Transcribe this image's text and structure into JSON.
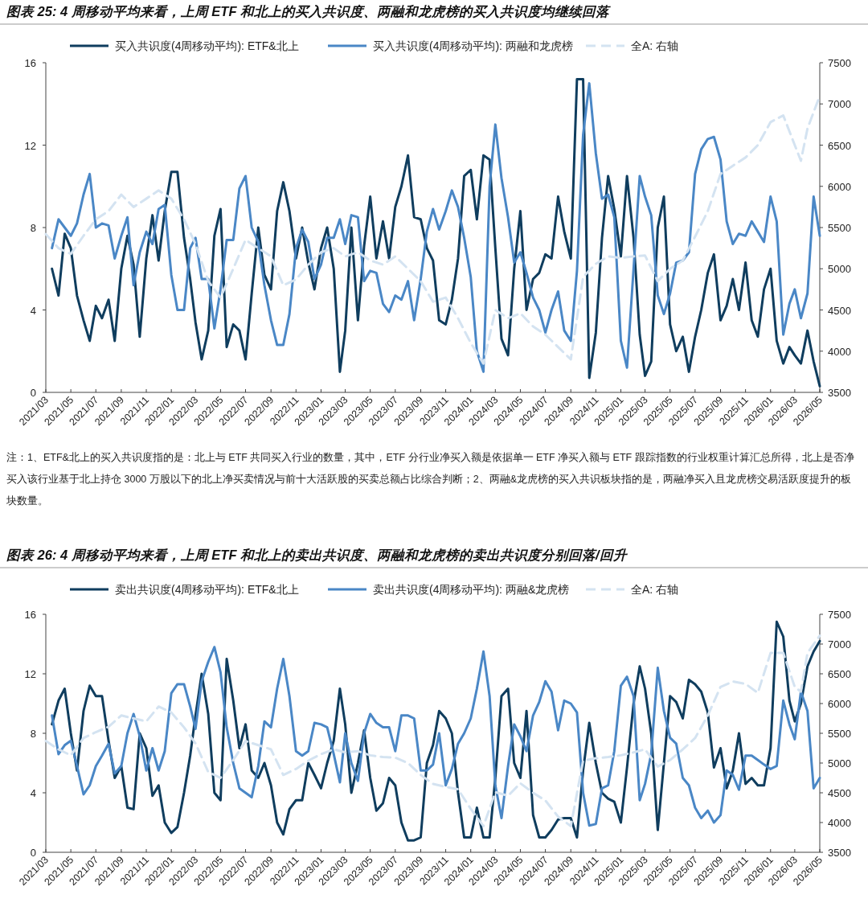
{
  "chart_data": [
    {
      "type": "line",
      "title": "图表 25: 4 周移动平均来看，上周 ETF 和北上的买入共识度、两融和龙虎榜的买入共识度均继续回落",
      "legend": "top",
      "xlim": [
        "2021-03-01",
        "2026-05-01"
      ],
      "xticks": [
        {
          "value": "2021-03-01",
          "label": "2021/03"
        },
        {
          "value": "2021-05-01",
          "label": "2021/05"
        },
        {
          "value": "2021-07-01",
          "label": "2021/07"
        },
        {
          "value": "2021-09-01",
          "label": "2021/09"
        },
        {
          "value": "2021-11-01",
          "label": "2021/11"
        },
        {
          "value": "2022-01-01",
          "label": "2022/01"
        },
        {
          "value": "2022-03-01",
          "label": "2022/03"
        },
        {
          "value": "2022-05-01",
          "label": "2022/05"
        },
        {
          "value": "2022-07-01",
          "label": "2022/07"
        },
        {
          "value": "2022-09-01",
          "label": "2022/09"
        },
        {
          "value": "2022-11-01",
          "label": "2022/11"
        },
        {
          "value": "2023-01-01",
          "label": "2023/01"
        },
        {
          "value": "2023-03-01",
          "label": "2023/03"
        },
        {
          "value": "2023-05-01",
          "label": "2023/05"
        },
        {
          "value": "2023-07-01",
          "label": "2023/07"
        },
        {
          "value": "2023-09-01",
          "label": "2023/09"
        },
        {
          "value": "2023-11-01",
          "label": "2023/11"
        },
        {
          "value": "2024-01-01",
          "label": "2024/01"
        },
        {
          "value": "2024-03-01",
          "label": "2024/03"
        },
        {
          "value": "2024-05-01",
          "label": "2024/05"
        },
        {
          "value": "2024-07-01",
          "label": "2024/07"
        },
        {
          "value": "2024-09-01",
          "label": "2024/09"
        },
        {
          "value": "2024-11-01",
          "label": "2024/11"
        },
        {
          "value": "2025-01-01",
          "label": "2025/01"
        },
        {
          "value": "2025-03-01",
          "label": "2025/03"
        },
        {
          "value": "2025-05-01",
          "label": "2025/05"
        },
        {
          "value": "2025-07-01",
          "label": "2025/07"
        },
        {
          "value": "2025-09-01",
          "label": "2025/09"
        },
        {
          "value": "2025-11-01",
          "label": "2025/11"
        },
        {
          "value": "2026-01-01",
          "label": "2026/01"
        },
        {
          "value": "2026-03-01",
          "label": "2026/03"
        },
        {
          "value": "2026-05-01",
          "label": "2026/05"
        }
      ],
      "ylim": [
        0,
        16
      ],
      "yticks": [
        0,
        4,
        8,
        12,
        16
      ],
      "y2lim": [
        3500,
        7500
      ],
      "y2ticks": [
        3500,
        4000,
        4500,
        5000,
        5500,
        6000,
        6500,
        7000,
        7500
      ],
      "x": [
        "2021-03-16",
        "2021-04-01",
        "2021-04-16",
        "2021-05-01",
        "2021-05-16",
        "2021-06-01",
        "2021-06-16",
        "2021-07-01",
        "2021-07-16",
        "2021-08-01",
        "2021-08-16",
        "2021-09-01",
        "2021-09-16",
        "2021-10-01",
        "2021-10-16",
        "2021-11-01",
        "2021-11-16",
        "2021-12-01",
        "2021-12-16",
        "2022-01-01",
        "2022-01-16",
        "2022-02-01",
        "2022-02-16",
        "2022-03-01",
        "2022-03-16",
        "2022-04-01",
        "2022-04-16",
        "2022-05-01",
        "2022-05-16",
        "2022-06-01",
        "2022-06-16",
        "2022-07-01",
        "2022-07-16",
        "2022-08-01",
        "2022-08-16",
        "2022-09-01",
        "2022-09-16",
        "2022-10-01",
        "2022-10-16",
        "2022-11-01",
        "2022-11-16",
        "2022-12-01",
        "2022-12-16",
        "2023-01-01",
        "2023-01-16",
        "2023-02-01",
        "2023-02-16",
        "2023-03-01",
        "2023-03-16",
        "2023-04-01",
        "2023-04-16",
        "2023-05-01",
        "2023-05-16",
        "2023-06-01",
        "2023-06-16",
        "2023-07-01",
        "2023-07-16",
        "2023-08-01",
        "2023-08-16",
        "2023-09-01",
        "2023-09-16",
        "2023-10-01",
        "2023-10-16",
        "2023-11-01",
        "2023-11-16",
        "2023-12-01",
        "2023-12-16",
        "2024-01-01",
        "2024-01-16",
        "2024-02-01",
        "2024-02-16",
        "2024-03-01",
        "2024-03-16",
        "2024-04-01",
        "2024-04-16",
        "2024-05-01",
        "2024-05-16",
        "2024-06-01",
        "2024-06-16",
        "2024-07-01",
        "2024-07-16",
        "2024-08-01",
        "2024-08-16",
        "2024-09-01",
        "2024-09-16",
        "2024-10-01",
        "2024-10-16",
        "2024-11-01",
        "2024-11-16",
        "2024-12-01",
        "2024-12-16",
        "2025-01-01",
        "2025-01-16",
        "2025-02-01",
        "2025-02-16",
        "2025-03-01",
        "2025-03-16",
        "2025-04-01",
        "2025-04-16",
        "2025-05-01",
        "2025-05-16",
        "2025-06-01",
        "2025-06-16",
        "2025-07-01",
        "2025-07-16",
        "2025-08-01",
        "2025-08-16",
        "2025-09-01",
        "2025-09-16",
        "2025-10-01",
        "2025-10-16",
        "2025-11-01",
        "2025-11-16",
        "2025-12-01",
        "2025-12-16",
        "2026-01-01",
        "2026-01-16",
        "2026-02-01",
        "2026-02-16",
        "2026-03-01",
        "2026-03-16",
        "2026-04-01",
        "2026-04-16",
        "2026-05-01"
      ],
      "series": [
        {
          "name": "买入共识度(4周移动平均): ETF&北上",
          "color": "#0f3d5e",
          "values": [
            6.0,
            4.7,
            7.7,
            7.0,
            4.7,
            3.5,
            2.5,
            4.2,
            3.6,
            4.5,
            2.5,
            6.0,
            7.6,
            6.2,
            2.7,
            6.5,
            8.6,
            6.4,
            8.8,
            10.7,
            10.7,
            7.5,
            5.5,
            3.4,
            1.6,
            3.0,
            7.6,
            8.9,
            2.2,
            3.3,
            3.0,
            1.6,
            4.8,
            8.0,
            5.7,
            5.0,
            8.8,
            10.2,
            8.8,
            6.5,
            8.0,
            6.3,
            5.0,
            7.0,
            8.0,
            6.0,
            1.0,
            3.0,
            8.0,
            3.5,
            7.1,
            9.5,
            6.5,
            8.3,
            6.5,
            9.0,
            10.0,
            11.5,
            8.5,
            8.4,
            7.0,
            6.4,
            3.5,
            3.3,
            4.5,
            6.5,
            10.5,
            10.8,
            8.4,
            11.5,
            11.3,
            7.0,
            2.6,
            1.8,
            6.0,
            8.8,
            4.0,
            5.5,
            5.8,
            6.7,
            6.5,
            9.5,
            7.8,
            6.5,
            15.2,
            15.2,
            0.7,
            2.9,
            7.5,
            10.5,
            8.9,
            6.6,
            10.5,
            7.5,
            2.8,
            0.8,
            1.5,
            8.0,
            9.5,
            3.3,
            2.0,
            2.7,
            1.0,
            2.7,
            4.0,
            5.8,
            6.7,
            3.5,
            4.2,
            5.5,
            4.0,
            6.3,
            3.5,
            2.7,
            5.0,
            6.0,
            2.5,
            1.4,
            2.2,
            1.8,
            1.4,
            3.0,
            1.5,
            0.3
          ]
        },
        {
          "name": "买入共识度(4周移动平均): 两融和龙虎榜",
          "color": "#4a87c6",
          "values": [
            7.0,
            8.4,
            8.0,
            7.6,
            8.2,
            9.6,
            10.6,
            8.0,
            8.2,
            8.1,
            6.5,
            7.6,
            8.5,
            5.2,
            6.8,
            7.8,
            7.2,
            8.9,
            9.1,
            5.7,
            4.0,
            4.0,
            7.0,
            7.5,
            5.5,
            5.5,
            3.1,
            5.0,
            7.4,
            7.4,
            9.9,
            10.5,
            8.0,
            7.3,
            5.2,
            3.5,
            2.3,
            2.3,
            3.8,
            7.0,
            7.9,
            7.3,
            5.5,
            6.2,
            7.5,
            7.5,
            8.4,
            7.2,
            8.6,
            8.5,
            5.4,
            5.9,
            5.8,
            4.3,
            3.9,
            4.7,
            4.5,
            5.4,
            3.5,
            5.5,
            7.8,
            8.9,
            7.9,
            8.8,
            9.8,
            9.0,
            7.5,
            5.6,
            2.0,
            1.0,
            10.0,
            13.0,
            10.4,
            8.5,
            6.3,
            6.8,
            5.8,
            4.6,
            4.0,
            2.9,
            4.0,
            4.9,
            3.0,
            2.5,
            5.9,
            12.5,
            15.0,
            11.6,
            9.4,
            9.6,
            8.5,
            2.5,
            1.2,
            6.0,
            10.5,
            9.5,
            8.6,
            4.7,
            3.8,
            4.8,
            6.3,
            6.4,
            6.8,
            10.6,
            11.8,
            12.3,
            12.4,
            11.3,
            8.3,
            7.2,
            7.7,
            7.6,
            8.3,
            7.8,
            7.3,
            9.5,
            8.3,
            2.8,
            4.3,
            5.0,
            3.6,
            4.8,
            9.5,
            7.6
          ]
        },
        {
          "name": "全A: 右轴",
          "color": "#d4e3f1",
          "axis": "y2",
          "line_style": "dashed",
          "x": [
            "2021-03-01",
            "2021-04-01",
            "2021-05-01",
            "2021-06-01",
            "2021-07-01",
            "2021-08-01",
            "2021-09-01",
            "2021-10-01",
            "2021-11-01",
            "2021-12-01",
            "2022-01-01",
            "2022-02-01",
            "2022-03-01",
            "2022-04-01",
            "2022-05-01",
            "2022-06-01",
            "2022-07-01",
            "2022-08-01",
            "2022-09-01",
            "2022-10-01",
            "2022-11-01",
            "2022-12-01",
            "2023-01-01",
            "2023-02-01",
            "2023-03-01",
            "2023-04-01",
            "2023-05-01",
            "2023-06-01",
            "2023-07-01",
            "2023-08-01",
            "2023-09-01",
            "2023-10-01",
            "2023-11-01",
            "2023-12-01",
            "2024-01-01",
            "2024-02-01",
            "2024-03-01",
            "2024-04-01",
            "2024-05-01",
            "2024-06-01",
            "2024-07-01",
            "2024-08-01",
            "2024-09-01",
            "2024-10-01",
            "2024-11-01",
            "2024-12-01",
            "2025-01-01",
            "2025-02-01",
            "2025-03-01",
            "2025-04-01",
            "2025-05-01",
            "2025-06-01",
            "2025-07-01",
            "2025-08-01",
            "2025-09-01",
            "2025-10-01",
            "2025-11-01",
            "2025-12-01",
            "2026-01-01",
            "2026-02-01",
            "2026-03-01",
            "2026-03-16",
            "2026-04-01",
            "2026-05-01"
          ],
          "values": [
            5420,
            5250,
            5180,
            5400,
            5600,
            5700,
            5900,
            5750,
            5850,
            5950,
            5850,
            5600,
            5300,
            4850,
            4650,
            5000,
            5350,
            5250,
            5150,
            4800,
            4870,
            5050,
            5200,
            5250,
            5150,
            5200,
            5100,
            5050,
            5150,
            5000,
            4850,
            4600,
            4650,
            4400,
            4100,
            3850,
            4500,
            4400,
            4460,
            4300,
            4200,
            4050,
            3900,
            4900,
            5060,
            5150,
            5130,
            5150,
            5160,
            4850,
            5000,
            5100,
            5390,
            5700,
            6150,
            6250,
            6350,
            6500,
            6780,
            6860,
            6500,
            6310,
            6700,
            7100
          ]
        }
      ],
      "annotations": [
        "注：1、ETF&北上的买入共识度指的是：北上与 ETF 共同买入行业的数量，其中，ETF 分行业净买入额是依据单一 ETF 净买入额与 ETF 跟踪指数的行业权重计算汇总所得，北上是否净买入该行业基于北上持仓 3000 万股以下的北上净买卖情况与前十大活跃股的买卖总额占比综合判断；2、两融&龙虎榜的买入共识板块指的是，两融净买入且龙虎榜交易活跃度提升的板块数量。"
      ]
    },
    {
      "type": "line",
      "title": "图表 26: 4 周移动平均来看，上周 ETF 和北上的卖出共识度、两融和龙虎榜的卖出共识度分别回落/回升",
      "legend": "top",
      "xlim": [
        "2021-03-01",
        "2026-05-01"
      ],
      "xticks": [
        {
          "value": "2021-03-01",
          "label": "2021/03"
        },
        {
          "value": "2021-05-01",
          "label": "2021/05"
        },
        {
          "value": "2021-07-01",
          "label": "2021/07"
        },
        {
          "value": "2021-09-01",
          "label": "2021/09"
        },
        {
          "value": "2021-11-01",
          "label": "2021/11"
        },
        {
          "value": "2022-01-01",
          "label": "2022/01"
        },
        {
          "value": "2022-03-01",
          "label": "2022/03"
        },
        {
          "value": "2022-05-01",
          "label": "2022/05"
        },
        {
          "value": "2022-07-01",
          "label": "2022/07"
        },
        {
          "value": "2022-09-01",
          "label": "2022/09"
        },
        {
          "value": "2022-11-01",
          "label": "2022/11"
        },
        {
          "value": "2023-01-01",
          "label": "2023/01"
        },
        {
          "value": "2023-03-01",
          "label": "2023/03"
        },
        {
          "value": "2023-05-01",
          "label": "2023/05"
        },
        {
          "value": "2023-07-01",
          "label": "2023/07"
        },
        {
          "value": "2023-09-01",
          "label": "2023/09"
        },
        {
          "value": "2023-11-01",
          "label": "2023/11"
        },
        {
          "value": "2024-01-01",
          "label": "2024/01"
        },
        {
          "value": "2024-03-01",
          "label": "2024/03"
        },
        {
          "value": "2024-05-01",
          "label": "2024/05"
        },
        {
          "value": "2024-07-01",
          "label": "2024/07"
        },
        {
          "value": "2024-09-01",
          "label": "2024/09"
        },
        {
          "value": "2024-11-01",
          "label": "2024/11"
        },
        {
          "value": "2025-01-01",
          "label": "2025/01"
        },
        {
          "value": "2025-03-01",
          "label": "2025/03"
        },
        {
          "value": "2025-05-01",
          "label": "2025/05"
        },
        {
          "value": "2025-07-01",
          "label": "2025/07"
        },
        {
          "value": "2025-09-01",
          "label": "2025/09"
        },
        {
          "value": "2025-11-01",
          "label": "2025/11"
        },
        {
          "value": "2026-01-01",
          "label": "2026/01"
        },
        {
          "value": "2026-03-01",
          "label": "2026/03"
        },
        {
          "value": "2026-05-01",
          "label": "2026/05"
        }
      ],
      "ylim": [
        0,
        16
      ],
      "yticks": [
        0,
        4,
        8,
        12,
        16
      ],
      "y2lim": [
        3500,
        7500
      ],
      "y2ticks": [
        3500,
        4000,
        4500,
        5000,
        5500,
        6000,
        6500,
        7000,
        7500
      ],
      "x": [
        "2021-03-16",
        "2021-04-01",
        "2021-04-16",
        "2021-05-01",
        "2021-05-16",
        "2021-06-01",
        "2021-06-16",
        "2021-07-01",
        "2021-07-16",
        "2021-08-01",
        "2021-08-16",
        "2021-09-01",
        "2021-09-16",
        "2021-10-01",
        "2021-10-16",
        "2021-11-01",
        "2021-11-16",
        "2021-12-01",
        "2021-12-16",
        "2022-01-01",
        "2022-01-16",
        "2022-02-01",
        "2022-02-16",
        "2022-03-01",
        "2022-03-16",
        "2022-04-01",
        "2022-04-16",
        "2022-05-01",
        "2022-05-16",
        "2022-06-01",
        "2022-06-16",
        "2022-07-01",
        "2022-07-16",
        "2022-08-01",
        "2022-08-16",
        "2022-09-01",
        "2022-09-16",
        "2022-10-01",
        "2022-10-16",
        "2022-11-01",
        "2022-11-16",
        "2022-12-01",
        "2022-12-16",
        "2023-01-01",
        "2023-01-16",
        "2023-02-01",
        "2023-02-16",
        "2023-03-01",
        "2023-03-16",
        "2023-04-01",
        "2023-04-16",
        "2023-05-01",
        "2023-05-16",
        "2023-06-01",
        "2023-06-16",
        "2023-07-01",
        "2023-07-16",
        "2023-08-01",
        "2023-08-16",
        "2023-09-01",
        "2023-09-16",
        "2023-10-01",
        "2023-10-16",
        "2023-11-01",
        "2023-11-16",
        "2023-12-01",
        "2023-12-16",
        "2024-01-01",
        "2024-01-16",
        "2024-02-01",
        "2024-02-16",
        "2024-03-01",
        "2024-03-16",
        "2024-04-01",
        "2024-04-16",
        "2024-05-01",
        "2024-05-16",
        "2024-06-01",
        "2024-06-16",
        "2024-07-01",
        "2024-07-16",
        "2024-08-01",
        "2024-08-16",
        "2024-09-01",
        "2024-09-16",
        "2024-10-01",
        "2024-10-16",
        "2024-11-01",
        "2024-11-16",
        "2024-12-01",
        "2024-12-16",
        "2025-01-01",
        "2025-01-16",
        "2025-02-01",
        "2025-02-16",
        "2025-03-01",
        "2025-03-16",
        "2025-04-01",
        "2025-04-16",
        "2025-05-01",
        "2025-05-16",
        "2025-06-01",
        "2025-06-16",
        "2025-07-01",
        "2025-07-16",
        "2025-08-01",
        "2025-08-16",
        "2025-09-01",
        "2025-09-16",
        "2025-10-01",
        "2025-10-16",
        "2025-11-01",
        "2025-11-16",
        "2025-12-01",
        "2025-12-16",
        "2026-01-01",
        "2026-01-16",
        "2026-02-01",
        "2026-02-16",
        "2026-03-01",
        "2026-03-16",
        "2026-04-01",
        "2026-04-16",
        "2026-05-01"
      ],
      "series": [
        {
          "name": "卖出共识度(4周移动平均): ETF&北上",
          "color": "#0f3d5e",
          "values": [
            8.6,
            10.2,
            11.0,
            8.0,
            5.5,
            9.5,
            11.2,
            10.5,
            10.5,
            7.5,
            5.0,
            5.8,
            3.0,
            2.9,
            8.0,
            7.0,
            3.8,
            4.5,
            2.0,
            1.3,
            1.7,
            4.0,
            6.5,
            9.2,
            12.0,
            9.3,
            4.0,
            3.5,
            13.0,
            10.2,
            7.0,
            8.6,
            5.5,
            5.0,
            6.0,
            4.5,
            2.0,
            1.2,
            2.9,
            3.5,
            3.5,
            6.0,
            5.2,
            4.3,
            6.0,
            7.5,
            11.0,
            8.6,
            4.0,
            6.0,
            8.2,
            5.0,
            2.8,
            3.3,
            5.0,
            4.5,
            2.0,
            0.8,
            0.8,
            1.0,
            6.0,
            7.2,
            9.5,
            9.0,
            8.0,
            4.0,
            1.0,
            1.0,
            3.0,
            1.0,
            1.0,
            5.0,
            10.5,
            11.0,
            6.0,
            5.0,
            9.5,
            2.5,
            1.0,
            1.0,
            1.5,
            2.2,
            2.3,
            2.3,
            1.0,
            5.5,
            8.7,
            6.0,
            4.0,
            3.6,
            3.4,
            2.0,
            5.7,
            10.0,
            12.5,
            11.0,
            8.0,
            1.5,
            6.0,
            10.5,
            10.1,
            9.0,
            11.6,
            11.3,
            10.8,
            9.4,
            5.7,
            7.0,
            4.3,
            5.5,
            8.0,
            4.6,
            5.0,
            4.5,
            4.5,
            7.0,
            15.5,
            14.5,
            10.2,
            8.8,
            10.0,
            12.5,
            13.5,
            14.2
          ]
        },
        {
          "name": "卖出共识度(4周移动平均): 两融&龙虎榜",
          "color": "#4a87c6",
          "values": [
            9.2,
            6.6,
            7.2,
            7.5,
            5.8,
            3.9,
            4.5,
            5.8,
            6.5,
            7.3,
            5.3,
            5.8,
            8.0,
            9.3,
            7.8,
            5.5,
            7.0,
            5.5,
            6.8,
            10.7,
            11.3,
            11.3,
            9.8,
            8.3,
            11.5,
            12.8,
            13.8,
            12.1,
            8.4,
            6.0,
            4.3,
            4.0,
            3.7,
            5.8,
            8.8,
            8.4,
            11.0,
            13.0,
            10.5,
            6.8,
            6.5,
            6.8,
            8.7,
            8.6,
            8.4,
            6.6,
            4.7,
            8.0,
            6.0,
            4.8,
            8.0,
            9.3,
            8.7,
            8.4,
            8.4,
            6.8,
            9.2,
            9.2,
            9.0,
            5.5,
            5.5,
            5.9,
            8.0,
            4.5,
            5.6,
            7.3,
            8.0,
            9.0,
            11.0,
            13.5,
            10.5,
            4.5,
            2.3,
            5.8,
            8.6,
            7.8,
            6.8,
            9.2,
            10.1,
            11.5,
            10.8,
            8.2,
            10.2,
            10.0,
            9.4,
            4.0,
            1.8,
            1.9,
            4.3,
            4.5,
            6.8,
            11.2,
            11.8,
            10.5,
            3.5,
            4.6,
            6.6,
            12.4,
            9.5,
            7.7,
            7.3,
            5.0,
            4.5,
            3.0,
            2.3,
            2.8,
            2.0,
            2.5,
            5.5,
            5.2,
            4.2,
            6.5,
            6.5,
            6.2,
            5.9,
            5.6,
            5.8,
            10.2,
            8.6,
            7.6,
            10.8,
            9.5,
            4.3,
            5.0
          ]
        },
        {
          "name": "全A: 右轴",
          "color": "#d4e3f1",
          "axis": "y2",
          "line_style": "dashed",
          "x": [
            "2021-03-01",
            "2021-04-01",
            "2021-05-01",
            "2021-06-01",
            "2021-07-01",
            "2021-08-01",
            "2021-09-01",
            "2021-10-01",
            "2021-11-01",
            "2021-12-01",
            "2022-01-01",
            "2022-02-01",
            "2022-03-01",
            "2022-04-01",
            "2022-05-01",
            "2022-06-01",
            "2022-07-01",
            "2022-08-01",
            "2022-09-01",
            "2022-10-01",
            "2022-11-01",
            "2022-12-01",
            "2023-01-01",
            "2023-02-01",
            "2023-03-01",
            "2023-04-01",
            "2023-05-01",
            "2023-06-01",
            "2023-07-01",
            "2023-08-01",
            "2023-09-01",
            "2023-10-01",
            "2023-11-01",
            "2023-12-01",
            "2024-01-01",
            "2024-02-01",
            "2024-03-01",
            "2024-04-01",
            "2024-05-01",
            "2024-06-01",
            "2024-07-01",
            "2024-08-01",
            "2024-09-01",
            "2024-10-01",
            "2024-11-01",
            "2024-12-01",
            "2025-01-01",
            "2025-02-01",
            "2025-03-01",
            "2025-04-01",
            "2025-05-01",
            "2025-06-01",
            "2025-07-01",
            "2025-08-01",
            "2025-09-01",
            "2025-10-01",
            "2025-11-01",
            "2025-12-01",
            "2026-01-01",
            "2026-02-01",
            "2026-03-01",
            "2026-03-16",
            "2026-04-01",
            "2026-05-01"
          ],
          "values": [
            5370,
            5230,
            5130,
            5420,
            5520,
            5610,
            5800,
            5750,
            5700,
            5950,
            5850,
            5600,
            5330,
            4850,
            4750,
            5050,
            5370,
            5300,
            5230,
            4800,
            4900,
            5040,
            5150,
            5230,
            5180,
            5200,
            5130,
            5100,
            5090,
            5000,
            4800,
            4650,
            4600,
            4560,
            4230,
            3940,
            4510,
            4450,
            4660,
            4500,
            4370,
            4100,
            3940,
            5040,
            5080,
            5100,
            5130,
            5180,
            5230,
            4940,
            5050,
            5230,
            5420,
            5800,
            6280,
            6370,
            6330,
            6180,
            6850,
            6850,
            6280,
            6200,
            6850,
            7140
          ]
        }
      ]
    }
  ]
}
